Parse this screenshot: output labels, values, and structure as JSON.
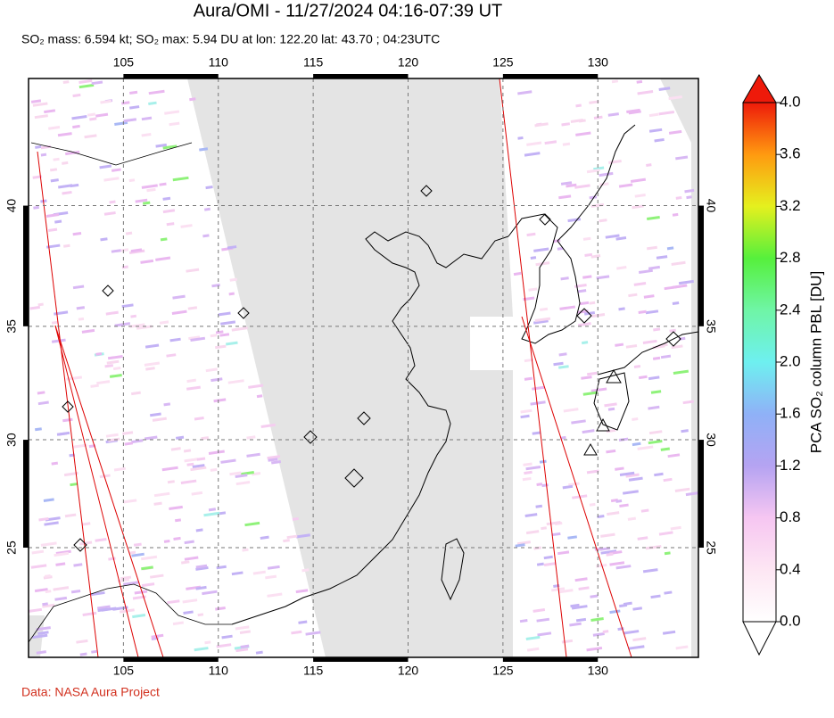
{
  "header": {
    "title": "Aura/OMI - 11/27/2024 04:16-07:39 UT",
    "subtitle": "SO₂ mass: 6.594 kt; SO₂ max: 5.94 DU at lon: 122.20 lat: 43.70 ; 04:23UTC"
  },
  "map": {
    "lon_lim": [
      100,
      135.3
    ],
    "lat_lim": [
      19.7,
      44.9
    ],
    "lon_ticks": [
      105,
      110,
      115,
      120,
      125,
      130
    ],
    "lat_ticks": [
      25,
      30,
      35,
      40
    ],
    "grid": true
  },
  "colorbar": {
    "label": "PCA SO₂ column PBL [DU]",
    "lim": [
      0,
      4
    ],
    "ticks": [
      {
        "value": 0,
        "label": "0.0"
      },
      0.4,
      0.8,
      1.2,
      1.6,
      {
        "value": 2,
        "label": "2.0"
      },
      2.4,
      2.8,
      3.2,
      3.6,
      {
        "value": 4,
        "label": "4.0"
      }
    ]
  },
  "footer": {
    "credit": "Data: NASA Aura Project"
  }
}
